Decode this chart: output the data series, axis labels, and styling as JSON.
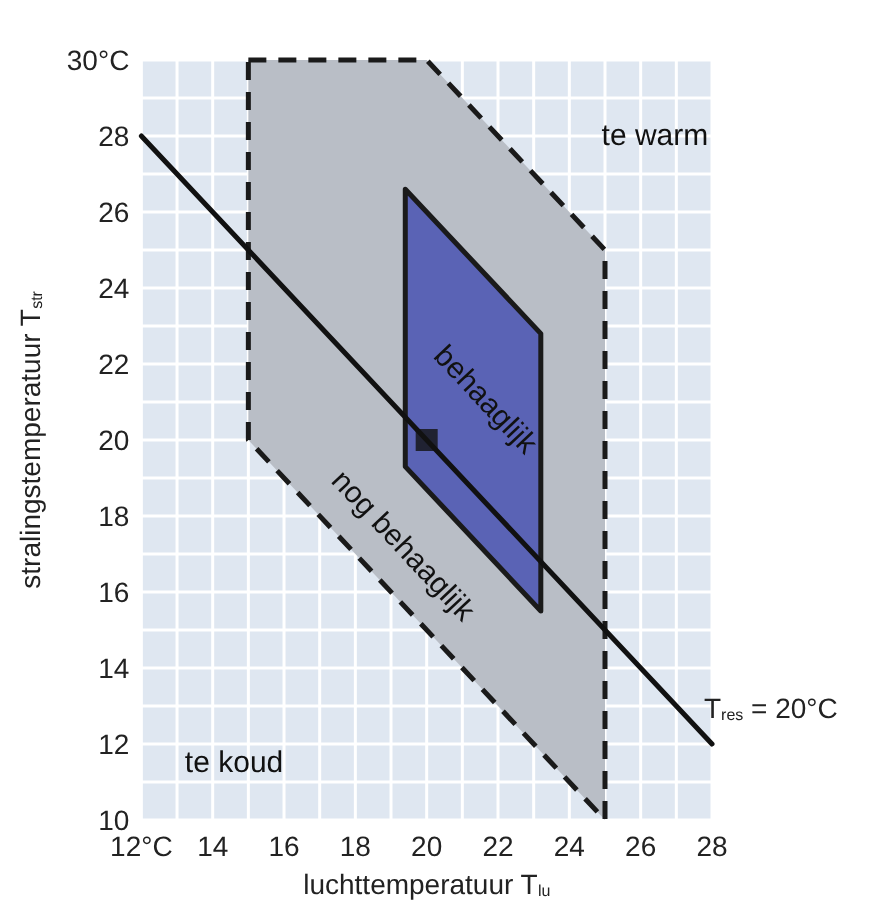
{
  "chart_data": {
    "type": "area",
    "xlabel": "luchttemperatuur T$_{lu}$",
    "ylabel": "stralingstemperatuur T$_{str}$",
    "annotations": [
      "te warm",
      "te koud"
    ],
    "xlim": [
      12,
      28
    ],
    "ylim": [
      10,
      30
    ],
    "xticks": [
      {
        "value": 12,
        "label": "12°C"
      },
      {
        "value": 13,
        "label": null
      },
      14,
      {
        "value": 15,
        "label": null
      },
      16,
      {
        "value": 17,
        "label": null
      },
      18,
      {
        "value": 19,
        "label": null
      },
      20,
      {
        "value": 21,
        "label": null
      },
      22,
      {
        "value": 23,
        "label": null
      },
      24,
      {
        "value": 25,
        "label": null
      },
      26,
      {
        "value": 27,
        "label": null
      },
      28
    ],
    "yticks": [
      10,
      {
        "value": 11,
        "label": null
      },
      12,
      {
        "value": 13,
        "label": null
      },
      14,
      {
        "value": 15,
        "label": null
      },
      16,
      {
        "value": 17,
        "label": null
      },
      18,
      {
        "value": 19,
        "label": null
      },
      20,
      {
        "value": 21,
        "label": null
      },
      22,
      {
        "value": 23,
        "label": null
      },
      24,
      {
        "value": 25,
        "label": null
      },
      26,
      {
        "value": 27,
        "label": null
      },
      28,
      {
        "value": 29,
        "label": null
      },
      {
        "value": 30,
        "label": "30°C"
      }
    ],
    "grid": true,
    "series": [
      {
        "name": "nog behaaglijk",
        "color": "#b9bec6",
        "line_style": "dashed",
        "x": [
          15,
          20,
          25,
          25,
          15,
          15
        ],
        "values": [
          30,
          30,
          25,
          10,
          20,
          30
        ]
      },
      {
        "name": "behaaglijk",
        "color": "#5a63b5",
        "line_style": "solid",
        "x": [
          19.4,
          19.4,
          23.2,
          23.2,
          19.4
        ],
        "values": [
          19.3,
          26.6,
          22.8,
          15.5,
          19.3
        ]
      },
      {
        "name": "T$_{res}$ = 20°C",
        "type": "line",
        "color": "#111111",
        "line_style": "solid",
        "x": [
          12,
          28
        ],
        "values": [
          28,
          12
        ]
      },
      {
        "type": "scatter",
        "color": "#111111",
        "marker": "square",
        "x": [
          20
        ],
        "values": [
          20
        ]
      }
    ]
  }
}
